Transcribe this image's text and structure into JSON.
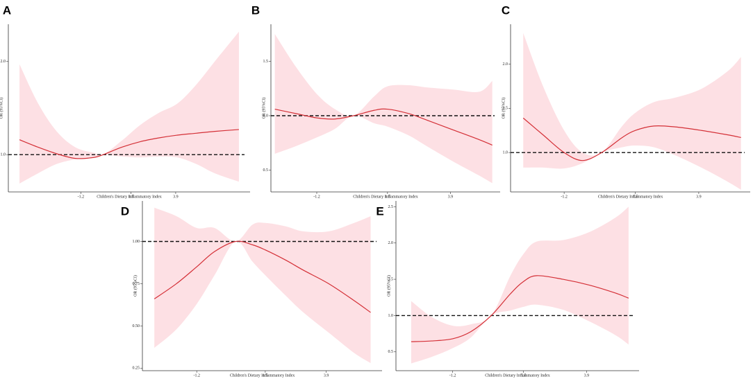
{
  "chart_data": [
    {
      "type": "line",
      "panel": "A",
      "xlabel": "Children's Dietary Inflammatory Index",
      "ylabel": "OR (95%CI)",
      "color": "#d42f36",
      "band_color": "#fde0e4",
      "reference": 1,
      "xlim": [
        -5.1,
        7.9
      ],
      "xticks": [
        -1.2,
        1.5,
        3.9
      ],
      "ylim": [
        0.6,
        2.4
      ],
      "yticks": [
        {
          "value": 1,
          "label": "1.0"
        },
        {
          "value": 2,
          "label": "2.0"
        }
      ],
      "x": [
        -4.5,
        -3.5,
        -2.5,
        -1.5,
        -0.5,
        0,
        1,
        2,
        3,
        4,
        5,
        6,
        7.3
      ],
      "values": [
        1.16,
        1.08,
        1.01,
        0.96,
        0.97,
        1.0,
        1.08,
        1.14,
        1.18,
        1.21,
        1.23,
        1.25,
        1.27
      ],
      "ci_upper": [
        1.97,
        1.55,
        1.25,
        1.08,
        1.02,
        1.0,
        1.15,
        1.32,
        1.45,
        1.55,
        1.75,
        2.0,
        2.32
      ],
      "ci_lower": [
        0.69,
        0.8,
        0.9,
        0.95,
        0.97,
        1.0,
        0.98,
        0.97,
        0.98,
        0.97,
        0.9,
        0.8,
        0.71
      ]
    },
    {
      "type": "line",
      "panel": "B",
      "xlabel": "Children's Dietary Inflammatory Index",
      "ylabel": "OR (95%CI)",
      "color": "#d42f36",
      "band_color": "#fde0e4",
      "reference": 1,
      "xlim": [
        -2.95,
        5.8
      ],
      "xticks": [
        -1.2,
        1.5,
        3.9
      ],
      "ylim": [
        0.3,
        1.84
      ],
      "yticks": [
        0.5,
        {
          "value": 1,
          "label": "1.0"
        },
        1.5
      ],
      "x": [
        -2.8,
        -2,
        -1.2,
        -0.5,
        0.2,
        1,
        1.5,
        2.3,
        3,
        4,
        5,
        5.5
      ],
      "values": [
        1.06,
        1.02,
        0.98,
        0.97,
        1.0,
        1.05,
        1.06,
        1.02,
        0.96,
        0.87,
        0.78,
        0.73
      ],
      "ci_upper": [
        1.75,
        1.45,
        1.2,
        1.06,
        1.0,
        1.18,
        1.27,
        1.28,
        1.26,
        1.24,
        1.22,
        1.32
      ],
      "ci_lower": [
        0.65,
        0.72,
        0.8,
        0.88,
        1.0,
        0.93,
        0.9,
        0.82,
        0.72,
        0.58,
        0.45,
        0.38
      ]
    },
    {
      "type": "line",
      "panel": "C",
      "xlabel": "Children's Dietary Inflammatory Index",
      "ylabel": "OR (95%CI)",
      "color": "#d42f36",
      "band_color": "#fde0e4",
      "reference": 1,
      "xlim": [
        -3.23,
        5.85
      ],
      "xticks": [
        -1.2,
        1.5,
        3.9
      ],
      "ylim": [
        0.555,
        2.45
      ],
      "yticks": [
        {
          "value": 1,
          "label": "1.0"
        },
        1.5,
        {
          "value": 2,
          "label": "2.0"
        }
      ],
      "x": [
        -2.75,
        -2,
        -1.2,
        -0.5,
        0.22,
        1,
        1.5,
        2.2,
        3,
        4,
        5,
        5.5
      ],
      "values": [
        1.39,
        1.2,
        1.0,
        0.91,
        1.0,
        1.17,
        1.25,
        1.3,
        1.29,
        1.25,
        1.2,
        1.17
      ],
      "ci_upper": [
        2.35,
        1.75,
        1.25,
        1.0,
        1.0,
        1.3,
        1.45,
        1.57,
        1.62,
        1.72,
        1.92,
        2.08
      ],
      "ci_lower": [
        0.83,
        0.83,
        0.82,
        0.88,
        1.0,
        1.06,
        1.08,
        1.06,
        0.97,
        0.83,
        0.67,
        0.58
      ]
    },
    {
      "type": "line",
      "panel": "D",
      "xlabel": "Children's Dietary Inflammatory Index",
      "ylabel": "OR (95%CI)",
      "color": "#d42f36",
      "band_color": "#fde0e4",
      "reference": 1,
      "xlim": [
        -3.34,
        6.1
      ],
      "xticks": [
        -1.2,
        1.5,
        3.9
      ],
      "ylim": [
        0.235,
        1.24
      ],
      "yticks": [
        {
          "value": 0.25,
          "label": "0.25"
        },
        {
          "value": 0.5,
          "label": "0.50"
        },
        {
          "value": 0.75,
          "label": "0.75"
        },
        {
          "value": 1,
          "label": "1.00"
        }
      ],
      "x": [
        -2.87,
        -2,
        -1.2,
        -0.5,
        0.33,
        1,
        1.5,
        2.3,
        3,
        4,
        5,
        5.65
      ],
      "values": [
        0.66,
        0.75,
        0.85,
        0.94,
        1.0,
        0.98,
        0.95,
        0.89,
        0.83,
        0.75,
        0.65,
        0.58
      ],
      "ci_upper": [
        1.2,
        1.15,
        1.08,
        1.08,
        1.0,
        1.1,
        1.11,
        1.09,
        1.06,
        1.06,
        1.11,
        1.15
      ],
      "ci_lower": [
        0.37,
        0.48,
        0.63,
        0.8,
        1.0,
        0.88,
        0.8,
        0.68,
        0.58,
        0.46,
        0.34,
        0.28
      ]
    },
    {
      "type": "line",
      "panel": "E",
      "xlabel": "Children's Dietary Inflammatory Index",
      "ylabel": "OR (95%CI)",
      "color": "#d42f36",
      "band_color": "#fde0e4",
      "reference": 1,
      "xlim": [
        -3.36,
        5.9
      ],
      "xticks": [
        -1.2,
        1.5,
        3.9
      ],
      "ylim": [
        0.24,
        2.58
      ],
      "yticks": [
        0.5,
        {
          "value": 1,
          "label": "1.0"
        },
        1.5,
        {
          "value": 2,
          "label": "2.0"
        },
        2.5
      ],
      "x": [
        -2.78,
        -2,
        -1.2,
        -0.5,
        0.27,
        1,
        1.5,
        2,
        3,
        4,
        5,
        5.5
      ],
      "values": [
        0.64,
        0.65,
        0.68,
        0.78,
        1.0,
        1.3,
        1.47,
        1.55,
        1.5,
        1.42,
        1.31,
        1.24
      ],
      "ci_upper": [
        1.2,
        0.98,
        0.86,
        0.88,
        1.0,
        1.55,
        1.85,
        2.02,
        2.04,
        2.15,
        2.35,
        2.5
      ],
      "ci_lower": [
        0.34,
        0.43,
        0.55,
        0.7,
        1.0,
        1.07,
        1.12,
        1.15,
        1.08,
        0.92,
        0.73,
        0.6
      ]
    }
  ]
}
